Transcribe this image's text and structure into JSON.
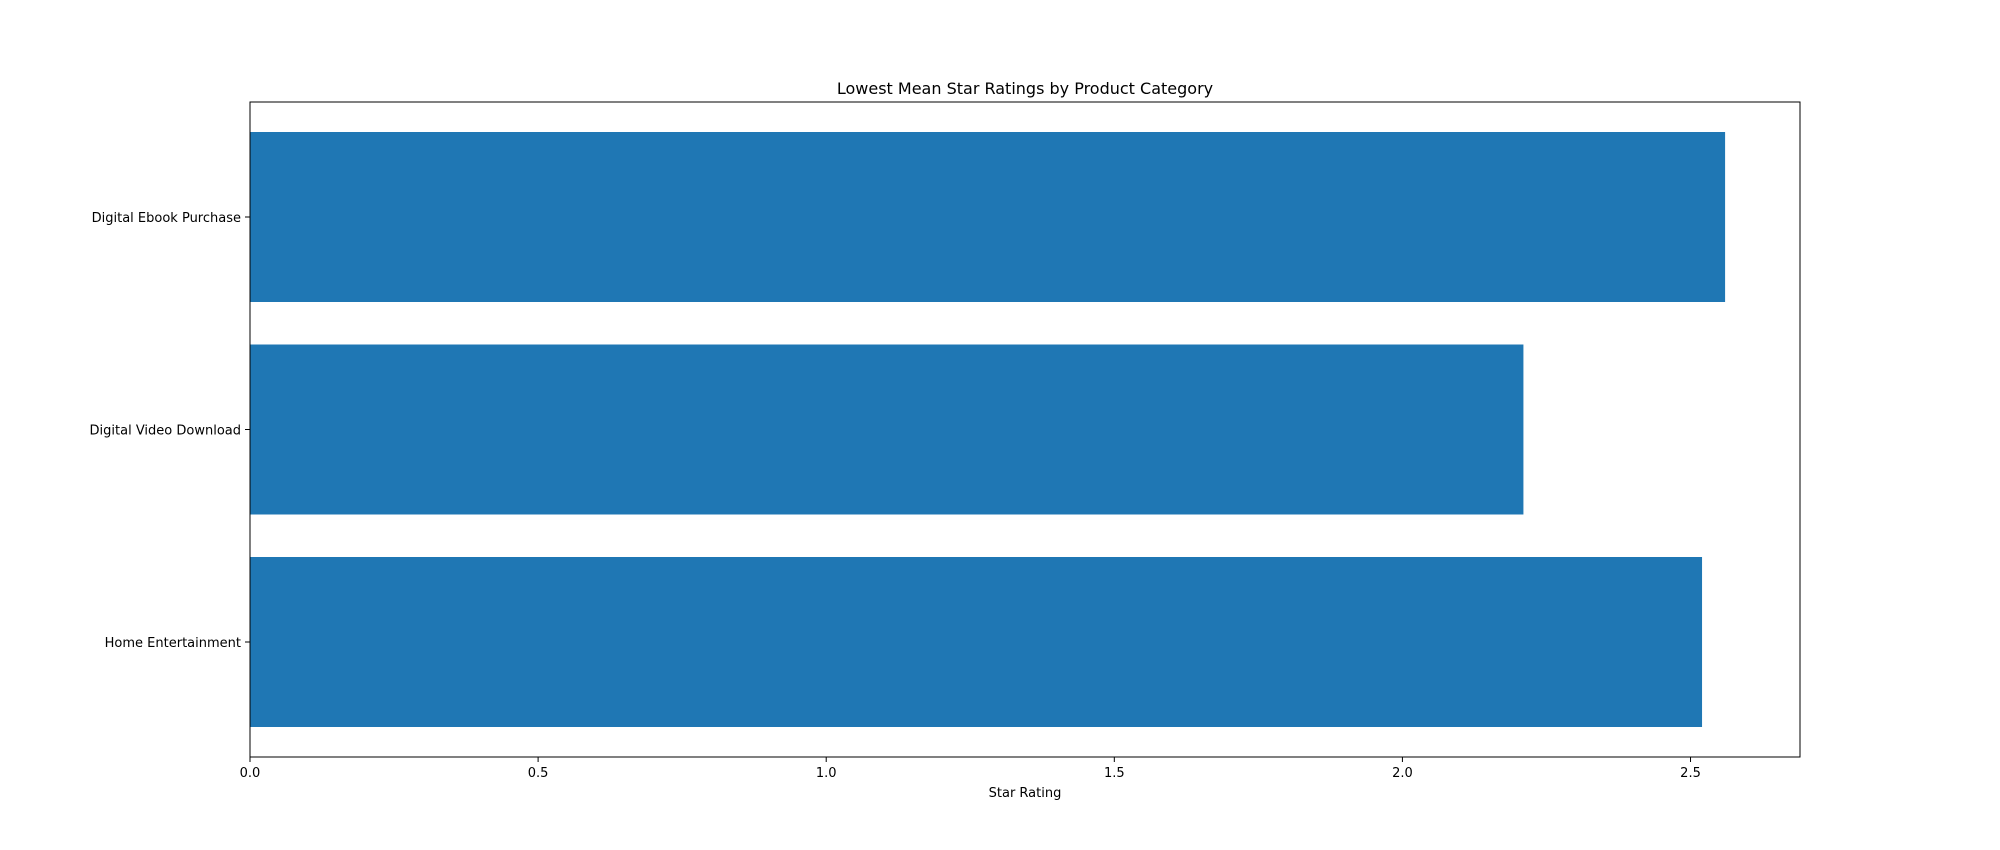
{
  "chart_data": {
    "type": "bar",
    "orientation": "horizontal",
    "title": "Lowest Mean Star Ratings by Product Category",
    "xlabel": "Star Rating",
    "ylabel": "",
    "categories": [
      "Digital Ebook Purchase",
      "Digital Video Download",
      "Home Entertainment"
    ],
    "values": [
      2.56,
      2.21,
      2.52
    ],
    "xlim": [
      0,
      2.69
    ],
    "xticks": [
      "0.0",
      "0.5",
      "1.0",
      "1.5",
      "2.0",
      "2.5"
    ],
    "bar_color": "#1f77b4",
    "grid": false
  }
}
